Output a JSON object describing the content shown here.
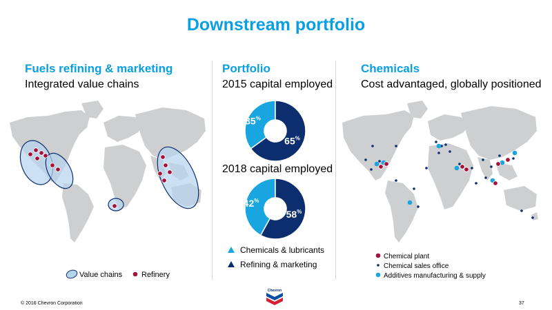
{
  "title": "Downstream portfolio",
  "left": {
    "heading": "Fuels refining & marketing",
    "subtitle": "Integrated value chains",
    "legend": {
      "value_chains": "Value chains",
      "refinery": "Refinery"
    }
  },
  "middle": {
    "heading": "Portfolio",
    "caption_2015": "2015 capital employed",
    "caption_2018": "2018 capital employed",
    "chart_data": [
      {
        "type": "pie",
        "title": "2015 capital employed",
        "categories": [
          "Chemicals & lubricants",
          "Refining & marketing"
        ],
        "values": [
          35,
          65
        ],
        "labels": [
          "35",
          "65"
        ]
      },
      {
        "type": "pie",
        "title": "2018 capital employed",
        "categories": [
          "Chemicals & lubricants",
          "Refining & marketing"
        ],
        "values": [
          42,
          58
        ],
        "labels": [
          "42",
          "58"
        ]
      }
    ],
    "percent_sign": "%",
    "legend": {
      "chem": "Chemicals & lubricants",
      "refining": "Refining & marketing"
    }
  },
  "right": {
    "heading": "Chemicals",
    "subtitle": "Cost advantaged, globally positioned",
    "legend": {
      "plant": "Chemical plant",
      "sales": "Chemical sales office",
      "additives": "Additives manufacturing & supply"
    }
  },
  "footer": {
    "copyright": "© 2016 Chevron Corporation",
    "page": "37",
    "logo_text": "Chevron"
  },
  "colors": {
    "accent": "#0a9ee3",
    "navy": "#0c2d6e",
    "light_blue": "#19a6e0",
    "refinery": "#a6123a",
    "land": "#cdcfd1",
    "ellipse_fill": "#b6d3ee"
  }
}
